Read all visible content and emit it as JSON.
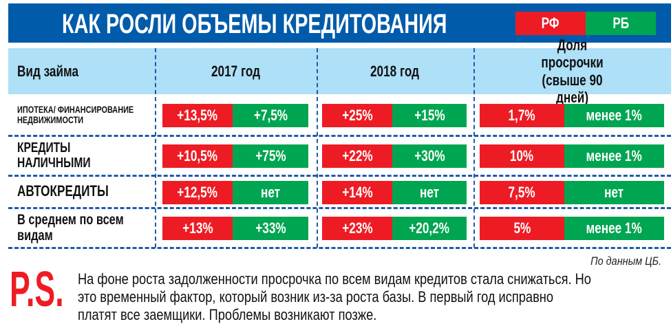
{
  "title": "КАК РОСЛИ ОБЪЕМЫ КРЕДИТОВАНИЯ",
  "legend": {
    "rf": "РФ",
    "rb": "РБ",
    "rf_color": "#ed1c24",
    "rb_color": "#00a551"
  },
  "chart_data": {
    "type": "table",
    "headers": [
      "Вид займа",
      "2017 год",
      "2018 год",
      "Доля просрочки (свыше 90 дней)"
    ],
    "rows": [
      {
        "label": "ИПОТЕКА/ ФИНАНСИРОВАНИЕ НЕДВИЖИМОСТИ",
        "y2017": [
          "+13,5%",
          "+7,5%"
        ],
        "y2018": [
          "+25%",
          "+15%"
        ],
        "overdue": [
          "1,7%",
          "менее 1%"
        ]
      },
      {
        "label": "КРЕДИТЫ НАЛИЧНЫМИ",
        "y2017": [
          "+10,5%",
          "+75%"
        ],
        "y2018": [
          "+22%",
          "+30%"
        ],
        "overdue": [
          "10%",
          "менее 1%"
        ]
      },
      {
        "label": "АВТОКРЕДИТЫ",
        "y2017": [
          "+12,5%",
          "нет"
        ],
        "y2018": [
          "+14%",
          "нет"
        ],
        "overdue": [
          "7,5%",
          "нет"
        ]
      },
      {
        "label": "В среднем по всем видам",
        "y2017": [
          "+13%",
          "+33%"
        ],
        "y2018": [
          "+23%",
          "+20,2%"
        ],
        "overdue": [
          "5%",
          "менее 1%"
        ]
      }
    ]
  },
  "source": "По данным ЦБ.",
  "ps": "P.S.",
  "note": "На фоне роста задолженности просрочка по всем видам кредитов стала снижаться. Но это временный фактор, который возник из-за роста базы. В первый год исправно платят все заемщики. Проблемы возникают позже."
}
